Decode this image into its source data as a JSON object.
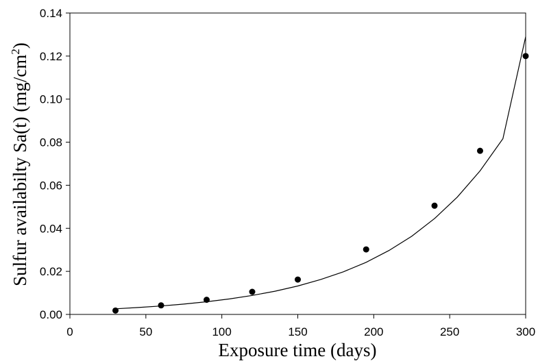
{
  "chart_data": {
    "type": "scatter",
    "title": "",
    "xlabel": "Exposure time (days)",
    "ylabel_main": "Sulfur availabilty Sa(t) (mg/cm",
    "ylabel_sup": "2",
    "ylabel_tail": ")",
    "xlim": [
      0,
      300
    ],
    "ylim": [
      0,
      0.14
    ],
    "x_ticks": [
      0,
      50,
      100,
      150,
      200,
      250,
      300
    ],
    "x_tick_labels": [
      "0",
      "50",
      "100",
      "150",
      "200",
      "250",
      "300"
    ],
    "y_ticks": [
      0,
      0.02,
      0.04,
      0.06,
      0.08,
      0.1,
      0.12,
      0.14
    ],
    "y_tick_labels": [
      "0.00",
      "0.02",
      "0.04",
      "0.06",
      "0.08",
      "0.10",
      "0.12",
      "0.14"
    ],
    "grid": false,
    "legend": "none",
    "series": [
      {
        "type": "scatter",
        "x": [
          30,
          60,
          90,
          120,
          150,
          195,
          240,
          270,
          300
        ],
        "y": [
          0.0018,
          0.0042,
          0.0068,
          0.0105,
          0.0162,
          0.0302,
          0.0505,
          0.076,
          0.12
        ],
        "color": "#000000"
      },
      {
        "type": "line",
        "x": [
          30,
          45,
          60,
          75,
          90,
          105,
          120,
          135,
          150,
          165,
          180,
          195,
          210,
          225,
          240,
          255,
          270,
          285,
          300
        ],
        "y": [
          0.0026,
          0.0032,
          0.0039,
          0.0048,
          0.0059,
          0.0072,
          0.0088,
          0.0108,
          0.0132,
          0.0162,
          0.0198,
          0.0242,
          0.0297,
          0.0363,
          0.0445,
          0.0545,
          0.0667,
          0.0816,
          0.129
        ],
        "color": "#000000"
      }
    ]
  }
}
